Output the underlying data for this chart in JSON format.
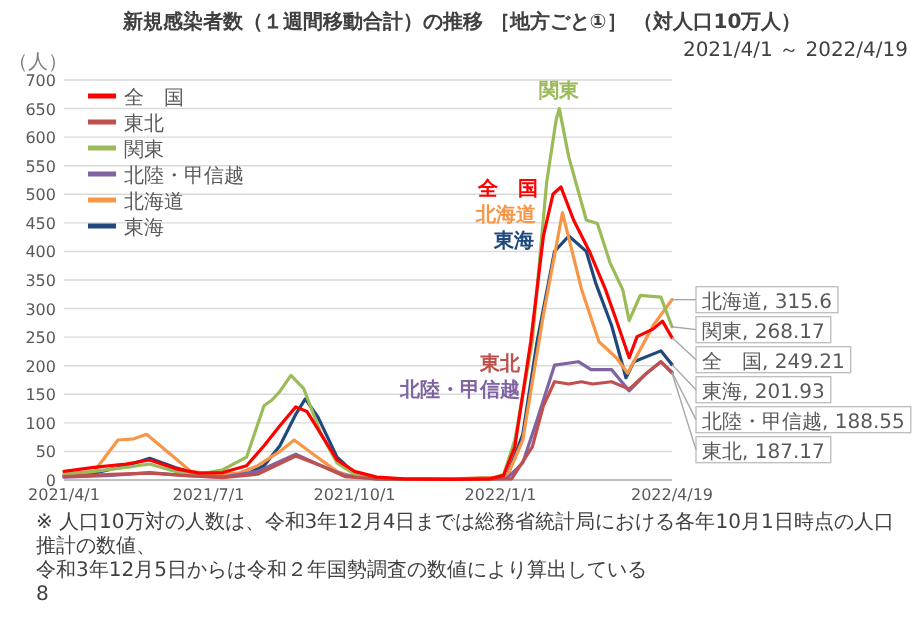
{
  "chart_data": {
    "type": "line",
    "title": "新規感染者数（１週間移動合計）の推移 ［地方ごと①］ （対人口10万人）",
    "subtitle": "2021/4/1 ～ 2022/4/19",
    "ylabel": "（人）",
    "xlim": [
      "2021-04-01",
      "2022-04-19"
    ],
    "ylim": [
      0,
      700
    ],
    "yticks": [
      0,
      50,
      100,
      150,
      200,
      250,
      300,
      350,
      400,
      450,
      500,
      550,
      600,
      650,
      700
    ],
    "grid": "y",
    "legend": "top left",
    "xticks": [
      {
        "value": "2021-04-01",
        "label": "2021/4/1"
      },
      {
        "value": "2021-07-01",
        "label": "2021/7/1"
      },
      {
        "value": "2021-10-01",
        "label": "2021/10/1"
      },
      {
        "value": "2022-01-01",
        "label": "2022/1/1"
      },
      {
        "value": "2022-04-19",
        "label": "2022/4/19"
      }
    ],
    "line_style": "solid",
    "series": [
      {
        "name": "全　国",
        "color": "#ff0000",
        "x": [
          "2021-04-01",
          "2021-04-20",
          "2021-05-10",
          "2021-05-25",
          "2021-06-10",
          "2021-06-25",
          "2021-07-10",
          "2021-07-25",
          "2021-08-05",
          "2021-08-15",
          "2021-08-25",
          "2021-09-01",
          "2021-09-10",
          "2021-09-20",
          "2021-10-01",
          "2021-10-15",
          "2021-11-01",
          "2021-12-01",
          "2021-12-25",
          "2022-01-03",
          "2022-01-10",
          "2022-01-20",
          "2022-01-28",
          "2022-02-03",
          "2022-02-08",
          "2022-02-16",
          "2022-02-26",
          "2022-03-08",
          "2022-03-15",
          "2022-03-23",
          "2022-03-28",
          "2022-04-07",
          "2022-04-13",
          "2022-04-19"
        ],
        "values": [
          15,
          22,
          28,
          35,
          20,
          12,
          13,
          25,
          60,
          95,
          128,
          120,
          80,
          35,
          15,
          5,
          2,
          1,
          2,
          8,
          58,
          242,
          427,
          500,
          513,
          455,
          400,
          334,
          279,
          214,
          251,
          264,
          278,
          249.21
        ],
        "value_labels": [
          null,
          null,
          null,
          null,
          null,
          null,
          null,
          null,
          null,
          null,
          null,
          null,
          null,
          null,
          null,
          null,
          null,
          null,
          null,
          null,
          null,
          null,
          null,
          null,
          null,
          null,
          null,
          null,
          null,
          null,
          null,
          null,
          null,
          "全　国, 249.21"
        ]
      },
      {
        "name": "東北",
        "color": "#c0504d",
        "x": [
          "2021-04-01",
          "2021-05-01",
          "2021-05-25",
          "2021-06-15",
          "2021-07-10",
          "2021-08-01",
          "2021-08-25",
          "2021-09-10",
          "2021-09-25",
          "2021-10-15",
          "2021-11-01",
          "2021-12-01",
          "2022-01-08",
          "2022-01-21",
          "2022-01-28",
          "2022-02-04",
          "2022-02-13",
          "2022-02-21",
          "2022-02-28",
          "2022-03-12",
          "2022-03-23",
          "2022-04-03",
          "2022-04-12",
          "2022-04-19"
        ],
        "values": [
          6,
          10,
          12,
          8,
          4,
          10,
          42,
          25,
          6,
          2,
          1,
          1,
          2,
          58,
          130,
          172,
          168,
          172,
          168,
          172,
          159,
          187,
          207,
          187.17
        ],
        "value_labels": [
          null,
          null,
          null,
          null,
          null,
          null,
          null,
          null,
          null,
          null,
          null,
          null,
          null,
          null,
          null,
          null,
          null,
          null,
          null,
          null,
          null,
          null,
          null,
          "東北, 187.17"
        ]
      },
      {
        "name": "関東",
        "color": "#9bbb59",
        "x": [
          "2021-04-01",
          "2021-04-20",
          "2021-05-10",
          "2021-05-25",
          "2021-06-10",
          "2021-06-25",
          "2021-07-10",
          "2021-07-25",
          "2021-08-05",
          "2021-08-10",
          "2021-08-15",
          "2021-08-22",
          "2021-08-30",
          "2021-09-10",
          "2021-09-20",
          "2021-10-01",
          "2021-10-15",
          "2021-11-01",
          "2021-12-01",
          "2021-12-25",
          "2022-01-03",
          "2022-01-10",
          "2022-01-21",
          "2022-01-30",
          "2022-02-05",
          "2022-02-07",
          "2022-02-13",
          "2022-02-24",
          "2022-03-03",
          "2022-03-11",
          "2022-03-19",
          "2022-03-23",
          "2022-03-30",
          "2022-04-12",
          "2022-04-19"
        ],
        "values": [
          10,
          15,
          22,
          28,
          15,
          10,
          18,
          40,
          130,
          140,
          155,
          183,
          160,
          80,
          30,
          10,
          3,
          1,
          1,
          1,
          10,
          70,
          242,
          520,
          630,
          650,
          565,
          455,
          449,
          380,
          333,
          279,
          323,
          320,
          268.17
        ],
        "value_labels": [
          null,
          null,
          null,
          null,
          null,
          null,
          null,
          null,
          null,
          null,
          null,
          null,
          null,
          null,
          null,
          null,
          null,
          null,
          null,
          null,
          null,
          null,
          null,
          null,
          null,
          null,
          null,
          null,
          null,
          null,
          null,
          null,
          null,
          null,
          "関東, 268.17"
        ]
      },
      {
        "name": "北陸・甲信越",
        "color": "#8064a2",
        "x": [
          "2021-04-01",
          "2021-05-01",
          "2021-05-25",
          "2021-06-15",
          "2021-07-10",
          "2021-08-01",
          "2021-08-25",
          "2021-09-10",
          "2021-09-25",
          "2021-10-15",
          "2021-11-01",
          "2021-12-01",
          "2022-01-05",
          "2022-01-15",
          "2022-01-24",
          "2022-02-04",
          "2022-02-19",
          "2022-02-27",
          "2022-03-12",
          "2022-03-23",
          "2022-04-03",
          "2022-04-12",
          "2022-04-19"
        ],
        "values": [
          5,
          8,
          13,
          8,
          5,
          15,
          45,
          25,
          8,
          2,
          1,
          1,
          3,
          30,
          105,
          201,
          207,
          193,
          193,
          156,
          187,
          207,
          188.55
        ],
        "value_labels": [
          null,
          null,
          null,
          null,
          null,
          null,
          null,
          null,
          null,
          null,
          null,
          null,
          null,
          null,
          null,
          null,
          null,
          null,
          null,
          null,
          null,
          null,
          "北陸・甲信越, 188.55"
        ]
      },
      {
        "name": "北海道",
        "color": "#f79646",
        "x": [
          "2021-04-01",
          "2021-04-20",
          "2021-05-05",
          "2021-05-15",
          "2021-05-23",
          "2021-06-05",
          "2021-06-20",
          "2021-07-05",
          "2021-07-20",
          "2021-08-01",
          "2021-08-15",
          "2021-08-24",
          "2021-09-05",
          "2021-09-20",
          "2021-10-01",
          "2021-11-01",
          "2021-12-01",
          "2022-01-05",
          "2022-01-15",
          "2022-01-28",
          "2022-02-09",
          "2022-02-21",
          "2022-03-04",
          "2022-03-15",
          "2022-03-22",
          "2022-04-07",
          "2022-04-19"
        ],
        "values": [
          10,
          15,
          70,
          72,
          80,
          50,
          15,
          10,
          12,
          25,
          50,
          70,
          45,
          15,
          5,
          2,
          2,
          5,
          70,
          289,
          468,
          334,
          242,
          214,
          187,
          270,
          315.6
        ],
        "value_labels": [
          null,
          null,
          null,
          null,
          null,
          null,
          null,
          null,
          null,
          null,
          null,
          null,
          null,
          null,
          null,
          null,
          null,
          null,
          null,
          null,
          null,
          null,
          null,
          null,
          null,
          null,
          "北海道, 315.6"
        ]
      },
      {
        "name": "東海",
        "color": "#1f497d",
        "x": [
          "2021-04-01",
          "2021-04-20",
          "2021-05-10",
          "2021-05-25",
          "2021-06-10",
          "2021-06-25",
          "2021-07-10",
          "2021-07-25",
          "2021-08-05",
          "2021-08-15",
          "2021-08-25",
          "2021-08-31",
          "2021-09-08",
          "2021-09-20",
          "2021-10-01",
          "2021-10-15",
          "2021-11-01",
          "2021-12-01",
          "2022-01-05",
          "2022-01-15",
          "2022-01-24",
          "2022-02-04",
          "2022-02-13",
          "2022-02-24",
          "2022-03-02",
          "2022-03-12",
          "2022-03-21",
          "2022-03-26",
          "2022-04-12",
          "2022-04-19"
        ],
        "values": [
          8,
          12,
          25,
          38,
          22,
          10,
          8,
          10,
          25,
          60,
          115,
          142,
          110,
          40,
          12,
          4,
          1,
          1,
          5,
          80,
          242,
          400,
          427,
          400,
          344,
          270,
          179,
          207,
          226,
          201.93
        ],
        "value_labels": [
          null,
          null,
          null,
          null,
          null,
          null,
          null,
          null,
          null,
          null,
          null,
          null,
          null,
          null,
          null,
          null,
          null,
          null,
          null,
          null,
          null,
          null,
          null,
          null,
          null,
          null,
          null,
          null,
          null,
          "東海, 201.93"
        ]
      }
    ],
    "annotations": [
      "※ 人口10万対の人数は、令和3年12月4日までは総務省統計局における各年10月1日時点の人口推計の数値、",
      "令和3年12月5日からは令和２年国勢調査の数値により算出している",
      "8"
    ]
  }
}
